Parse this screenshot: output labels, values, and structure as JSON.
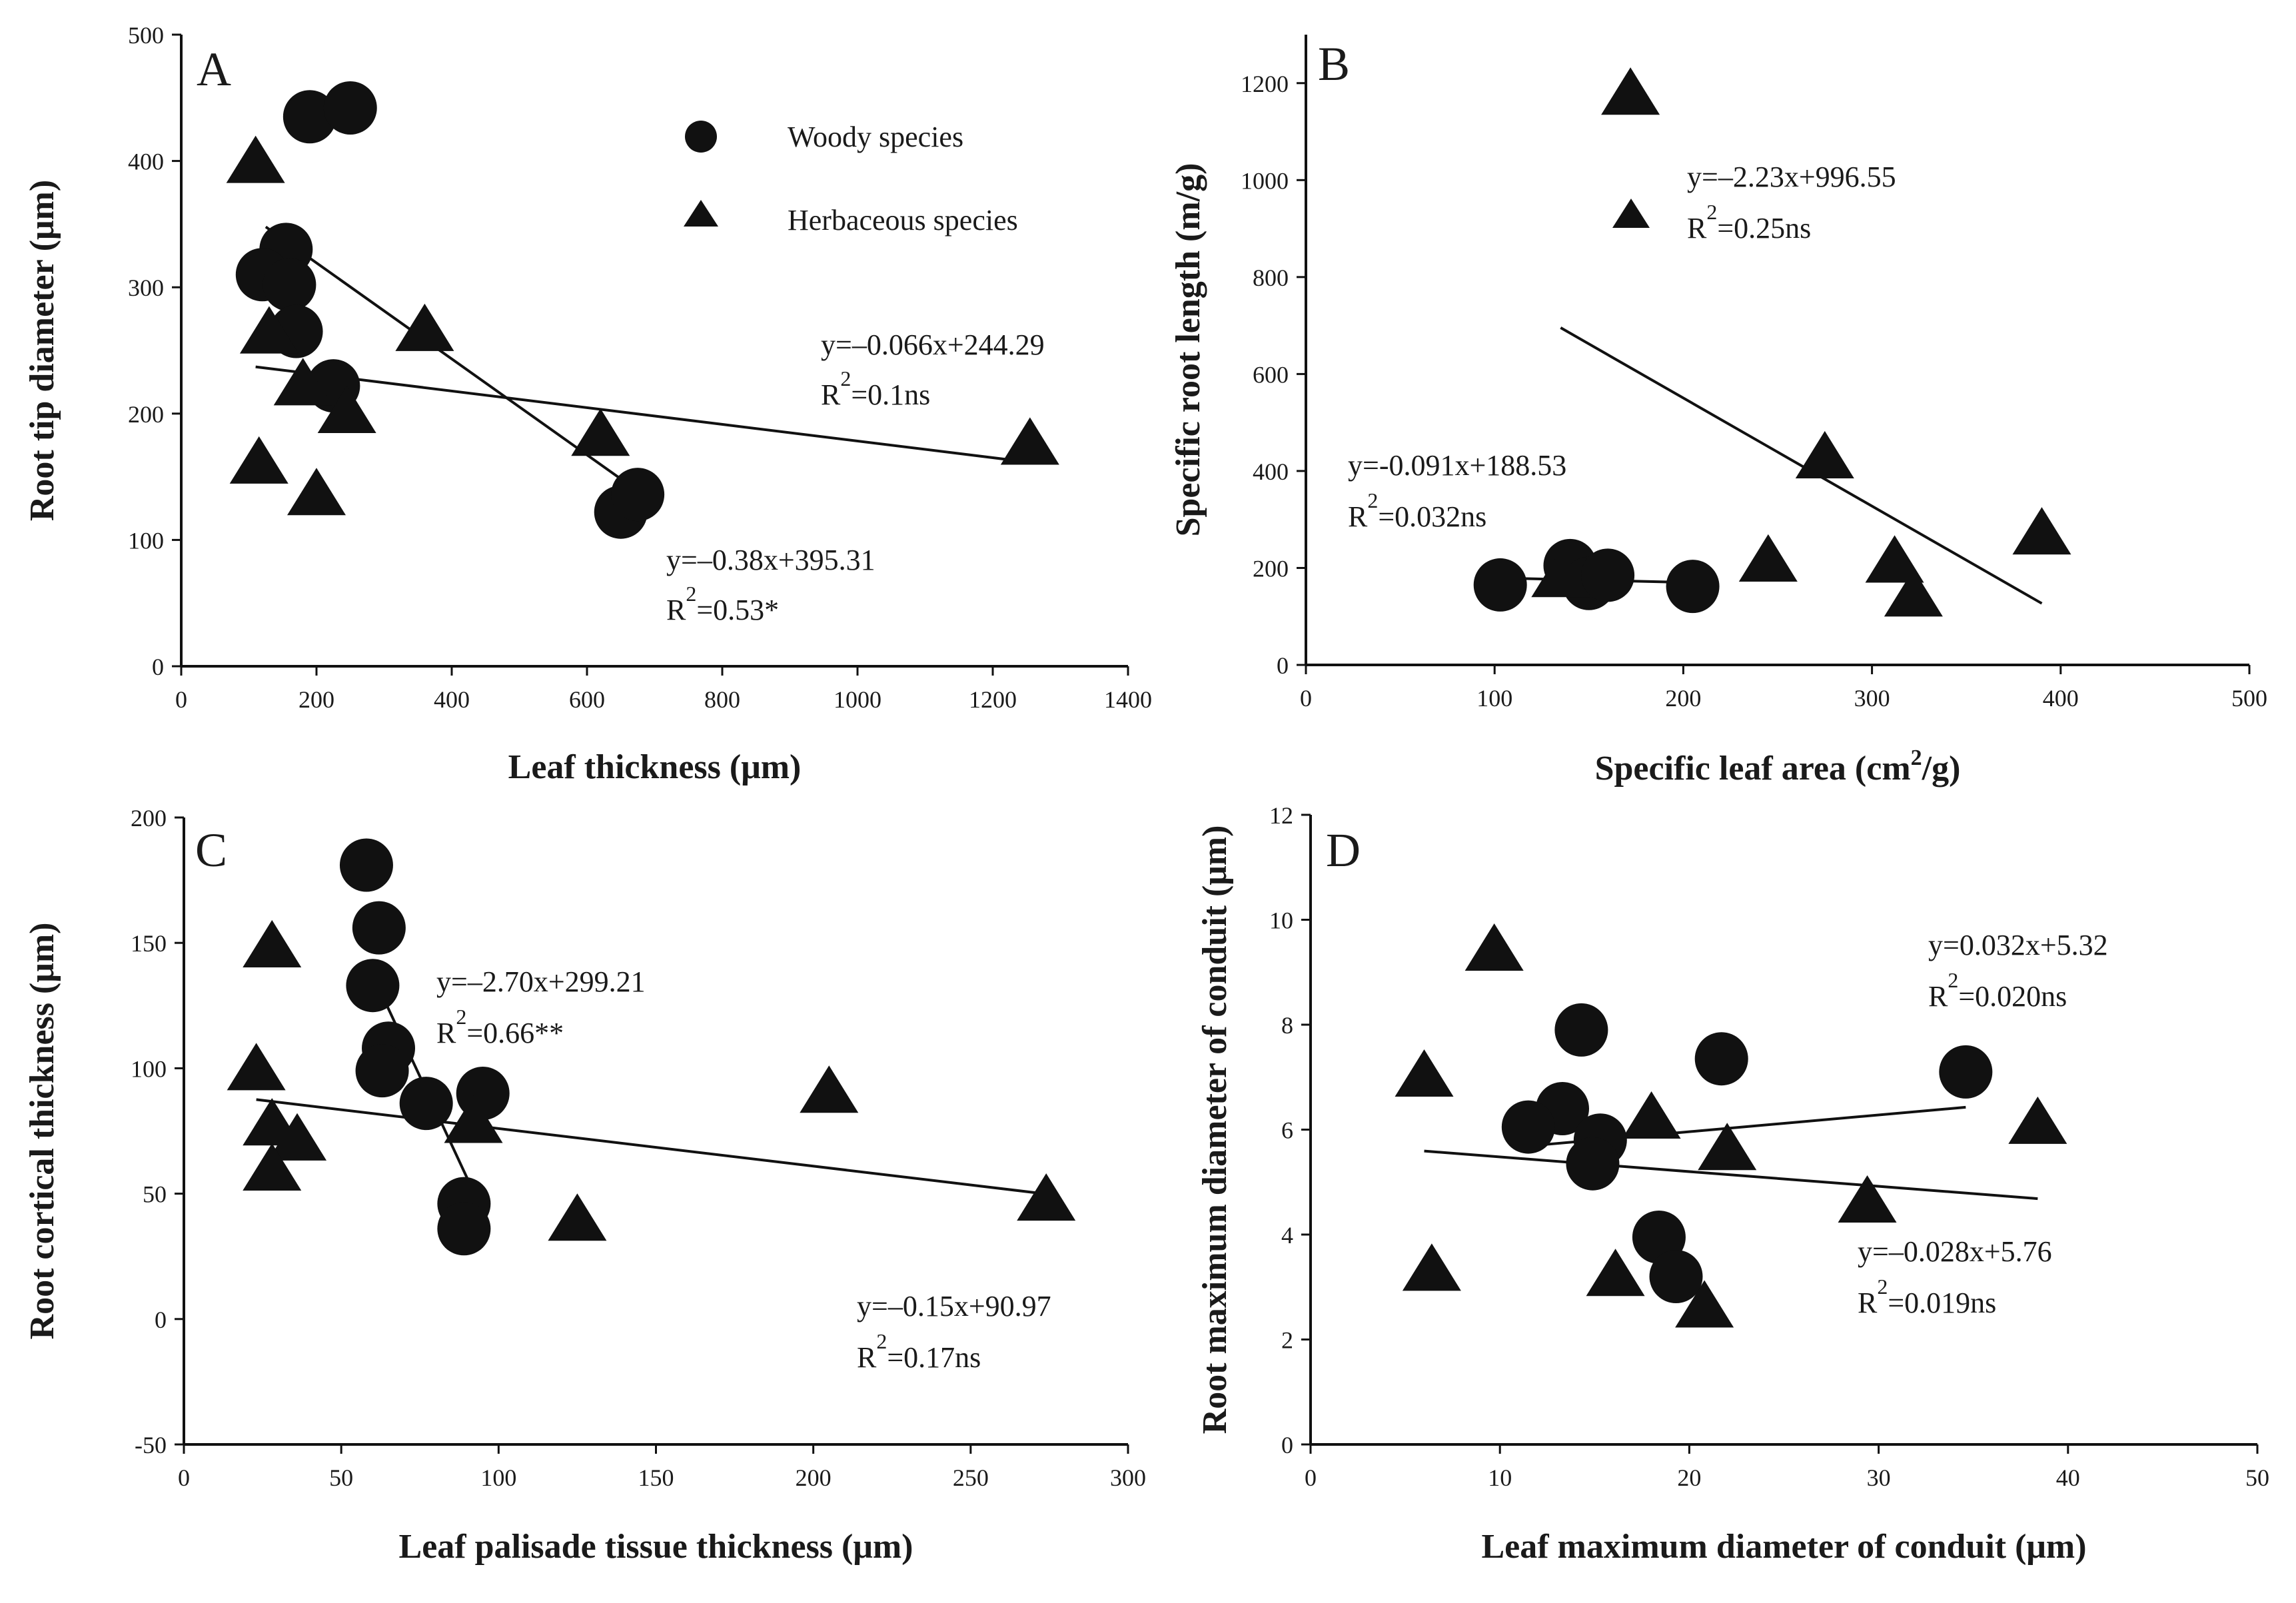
{
  "figure": {
    "legend": {
      "woody_label": "Woody species",
      "herb_label": "Herbaceous species"
    }
  },
  "chart_data": [
    {
      "panel": "A",
      "type": "scatter",
      "xlabel": "Leaf thickness (μm)",
      "ylabel": "Root tip diameter (μm)",
      "xlim": [
        0,
        1400
      ],
      "ylim": [
        0,
        500
      ],
      "xticks": [
        0,
        200,
        400,
        600,
        800,
        1000,
        1200,
        1400
      ],
      "yticks": [
        0,
        100,
        200,
        300,
        400,
        500
      ],
      "series": [
        {
          "name": "Woody species",
          "marker": "circle",
          "points": [
            [
              190,
              435
            ],
            [
              250,
              442
            ],
            [
              155,
              330
            ],
            [
              120,
              310
            ],
            [
              160,
              302
            ],
            [
              170,
              265
            ],
            [
              225,
              222
            ],
            [
              650,
              122
            ],
            [
              675,
              136
            ]
          ]
        },
        {
          "name": "Herbaceous species",
          "marker": "triangle",
          "points": [
            [
              110,
              398
            ],
            [
              130,
              263
            ],
            [
              180,
              222
            ],
            [
              245,
              200
            ],
            [
              115,
              160
            ],
            [
              200,
              135
            ],
            [
              360,
              265
            ],
            [
              620,
              182
            ],
            [
              1255,
              175
            ]
          ]
        }
      ],
      "fits": [
        {
          "series": "Woody species",
          "x0": 125,
          "x1": 660,
          "slope": -0.38,
          "intercept": 395.31,
          "eq": "y=–0.38x+395.31",
          "r2_prefix": "R",
          "r2_sup": "2",
          "r2_value": "=0.53*"
        },
        {
          "series": "Herbaceous species",
          "x0": 110,
          "x1": 1250,
          "slope": -0.066,
          "intercept": 244.29,
          "eq": "y=–0.066x+244.29",
          "r2_prefix": "R",
          "r2_sup": "2",
          "r2_value": "=0.1ns"
        }
      ]
    },
    {
      "panel": "B",
      "type": "scatter",
      "xlabel_main": "Specific leaf  area (cm",
      "xlabel_sup": "2",
      "xlabel_end": "/g)",
      "ylabel": "Specific root length (m/g)",
      "xlim": [
        0,
        500
      ],
      "ylim": [
        0,
        1300
      ],
      "xticks": [
        0,
        100,
        200,
        300,
        400,
        500
      ],
      "yticks": [
        0,
        200,
        400,
        600,
        800,
        1000,
        1200
      ],
      "series": [
        {
          "name": "Woody species",
          "marker": "circle",
          "points": [
            [
              103,
              165
            ],
            [
              140,
              205
            ],
            [
              150,
              168
            ],
            [
              160,
              185
            ],
            [
              205,
              162
            ]
          ]
        },
        {
          "name": "Herbaceous species",
          "marker": "triangle",
          "points": [
            [
              172,
              1175
            ],
            [
              135,
              180
            ],
            [
              245,
              212
            ],
            [
              275,
              425
            ],
            [
              312,
              210
            ],
            [
              322,
              140
            ],
            [
              390,
              268
            ]
          ]
        }
      ],
      "fits": [
        {
          "series": "Woody species",
          "x0": 103,
          "x1": 205,
          "slope": -0.091,
          "intercept": 188.53,
          "eq": "y=-0.091x+188.53",
          "r2_prefix": "R",
          "r2_sup": "2",
          "r2_value": "=0.032ns"
        },
        {
          "series": "Herbaceous species",
          "x0": 135,
          "x1": 390,
          "slope": -2.23,
          "intercept": 996.55,
          "eq": "y=–2.23x+996.55",
          "r2_prefix": "R",
          "r2_sup": "2",
          "r2_value": "=0.25ns"
        }
      ]
    },
    {
      "panel": "C",
      "type": "scatter",
      "xlabel": "Leaf palisade tissue thickness (μm)",
      "ylabel": "Root  cortical thickness (μm)",
      "xlim": [
        0,
        300
      ],
      "ylim": [
        -50,
        200
      ],
      "xticks": [
        0,
        50,
        100,
        150,
        200,
        250,
        300
      ],
      "yticks": [
        -50,
        0,
        50,
        100,
        150,
        200
      ],
      "series": [
        {
          "name": "Woody species",
          "marker": "circle",
          "points": [
            [
              58,
              181
            ],
            [
              62,
              156
            ],
            [
              60,
              133
            ],
            [
              65,
              108
            ],
            [
              63,
              99
            ],
            [
              77,
              86
            ],
            [
              95,
              90
            ],
            [
              89,
              46
            ],
            [
              89,
              36
            ]
          ]
        },
        {
          "name": "Herbaceous species",
          "marker": "triangle",
          "points": [
            [
              28,
              148
            ],
            [
              23,
              99
            ],
            [
              28,
              77
            ],
            [
              36,
              71
            ],
            [
              28,
              59
            ],
            [
              92,
              78
            ],
            [
              125,
              39
            ],
            [
              205,
              90
            ],
            [
              274,
              47
            ]
          ]
        }
      ],
      "fits": [
        {
          "series": "Woody species",
          "x0": 58,
          "x1": 94,
          "slope": -2.7,
          "intercept": 299.21,
          "eq": "y=–2.70x+299.21",
          "r2_prefix": "R",
          "r2_sup": "2",
          "r2_value": "=0.66**"
        },
        {
          "series": "Herbaceous species",
          "x0": 23,
          "x1": 274,
          "slope": -0.15,
          "intercept": 90.97,
          "eq": "y=–0.15x+90.97",
          "r2_prefix": "R",
          "r2_sup": "2",
          "r2_value": "=0.17ns"
        }
      ]
    },
    {
      "panel": "D",
      "type": "scatter",
      "xlabel": "Leaf maximum diameter of conduit (μm)",
      "ylabel": "Root maximum diameter of conduit (μm)",
      "xlim": [
        0,
        50
      ],
      "ylim": [
        0,
        12
      ],
      "xticks": [
        0,
        10,
        20,
        30,
        40,
        50
      ],
      "yticks": [
        0,
        2,
        4,
        6,
        8,
        10,
        12
      ],
      "series": [
        {
          "name": "Woody species",
          "marker": "circle",
          "points": [
            [
              14.3,
              7.9
            ],
            [
              21.7,
              7.35
            ],
            [
              34.6,
              7.1
            ],
            [
              13.3,
              6.4
            ],
            [
              11.5,
              6.05
            ],
            [
              15.3,
              5.8
            ],
            [
              14.9,
              5.35
            ],
            [
              18.4,
              3.95
            ],
            [
              19.3,
              3.2
            ]
          ]
        },
        {
          "name": "Herbaceous species",
          "marker": "triangle",
          "points": [
            [
              9.7,
              9.4
            ],
            [
              6.0,
              7.0
            ],
            [
              6.4,
              3.3
            ],
            [
              18.0,
              6.2
            ],
            [
              22.0,
              5.6
            ],
            [
              29.4,
              4.6
            ],
            [
              16.1,
              3.2
            ],
            [
              20.8,
              2.6
            ],
            [
              38.4,
              6.1
            ]
          ]
        }
      ],
      "fits": [
        {
          "series": "Woody species",
          "x0": 11.5,
          "x1": 34.6,
          "slope": 0.032,
          "intercept": 5.32,
          "eq": "y=0.032x+5.32",
          "r2_prefix": "R",
          "r2_sup": "2",
          "r2_value": "=0.020ns"
        },
        {
          "series": "Herbaceous species",
          "x0": 6.0,
          "x1": 38.4,
          "slope": -0.028,
          "intercept": 5.76,
          "eq": "y=–0.028x+5.76",
          "r2_prefix": "R",
          "r2_sup": "2",
          "r2_value": "=0.019ns"
        }
      ]
    }
  ]
}
